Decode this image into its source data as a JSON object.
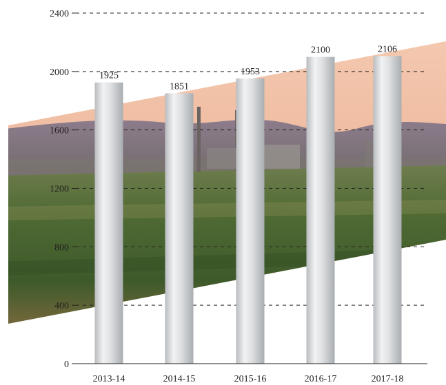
{
  "chart_data": {
    "type": "bar",
    "title": "",
    "xlabel": "",
    "ylabel": "",
    "categories": [
      "2013-14",
      "2014-15",
      "2015-16",
      "2016-17",
      "2017-18"
    ],
    "values": [
      1925,
      1851,
      1953,
      2100,
      2106
    ],
    "data_labels": [
      "1925",
      "1851",
      "1953",
      "2100",
      "2106"
    ],
    "ylim": [
      0,
      2400
    ],
    "yticks": [
      0,
      400,
      800,
      1200,
      1600,
      2000,
      2400
    ],
    "ytick_labels": [
      "0",
      "400",
      "800",
      "1200",
      "1600",
      "2000",
      "2400"
    ],
    "grid": true,
    "bar_color": "#c9cccf",
    "background": "parallelogram-shaped landscape photograph of an industrial plant with hills and fields behind the bars"
  }
}
